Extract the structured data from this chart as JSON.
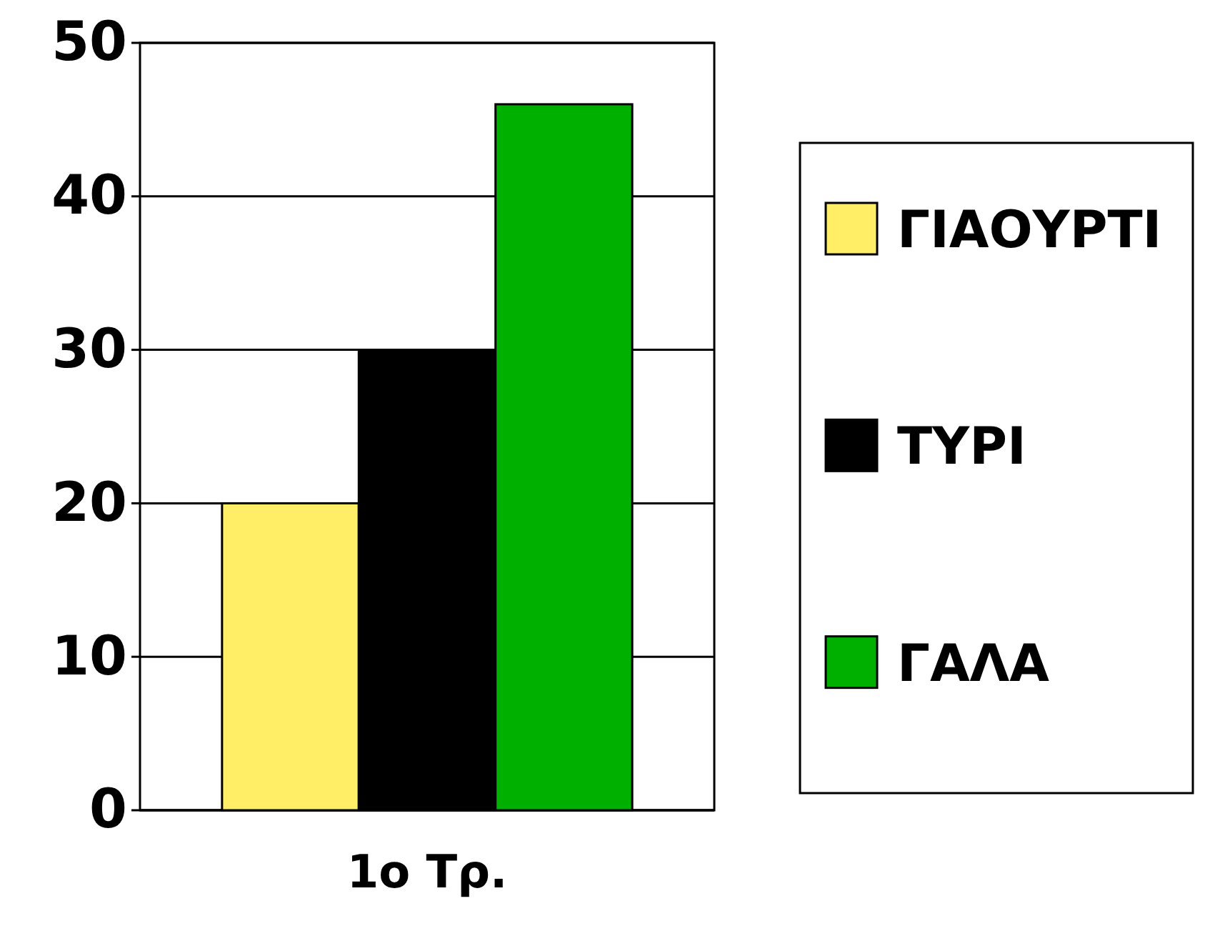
{
  "chart_data": {
    "type": "bar",
    "categories": [
      "1ο Τρ."
    ],
    "series": [
      {
        "name": "ΓΙΑΟΥΡΤΙ",
        "color": "#ffee66",
        "values": [
          20
        ]
      },
      {
        "name": "ΤΥΡΙ",
        "color": "#000000",
        "values": [
          30
        ]
      },
      {
        "name": "ΓΑΛΑ",
        "color": "#00b000",
        "values": [
          46
        ]
      }
    ],
    "ylim": [
      0,
      50
    ],
    "yticks": [
      0,
      10,
      20,
      30,
      40,
      50
    ],
    "grid": "y",
    "legend": "right"
  }
}
